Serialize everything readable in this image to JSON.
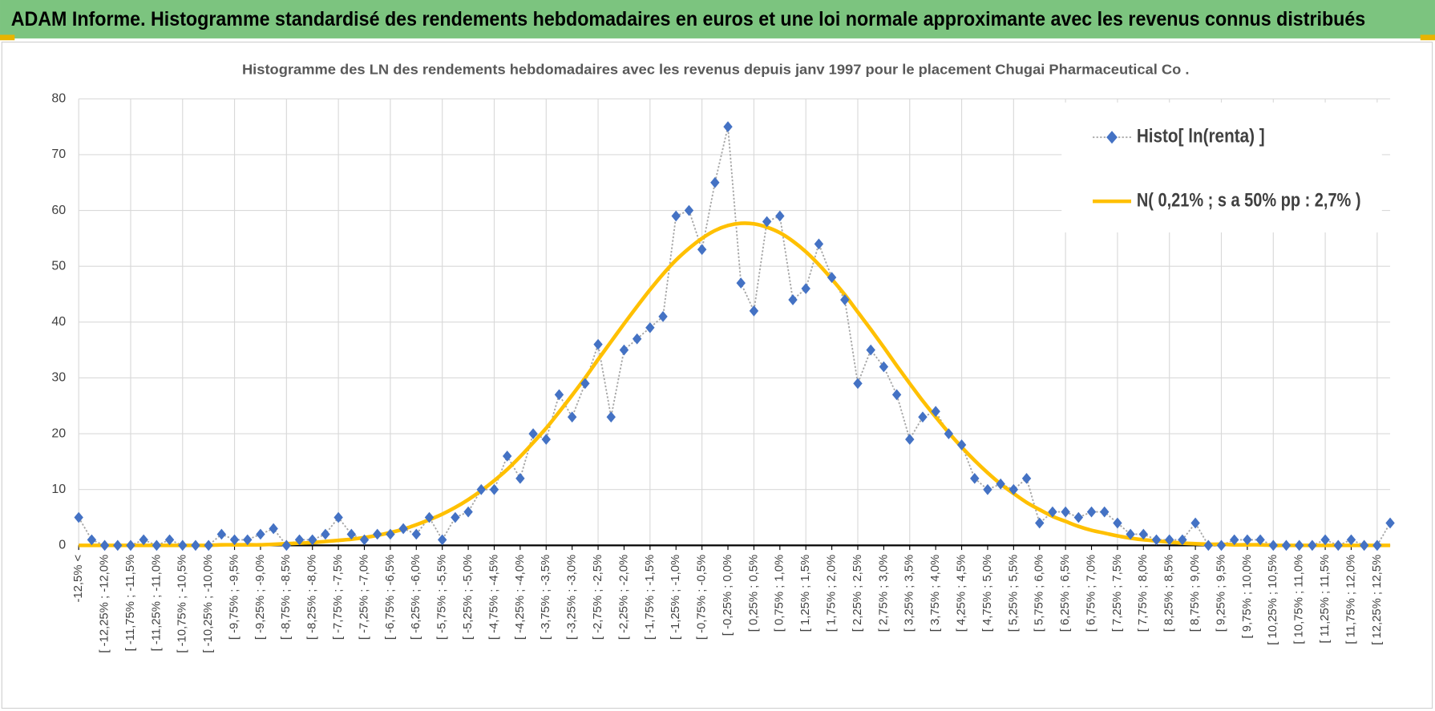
{
  "chart_data": {
    "type": "line",
    "title": "ADAM Informe. Histogramme standardisé des rendements hebdomadaires en euros et une loi normale approximante avec les revenus connus distribués",
    "subtitle": "Histogramme  des LN des rendements hebdomadaires avec les revenus depuis janv 1997 pour le placement Chugai Pharmaceutical Co .",
    "categories": [
      "-12,5% <",
      null,
      "[ -12,25% ; -12,0%",
      null,
      "[ -11,75% ; -11,5%",
      null,
      "[ -11,25% ; -11,0%",
      null,
      "[ -10,75% ; -10,5%",
      null,
      "[ -10,25% ; -10,0%",
      null,
      "[ -9,75% ; -9,5%",
      null,
      "[ -9,25% ; -9,0%",
      null,
      "[ -8,75% ; -8,5%",
      null,
      "[ -8,25% ; -8,0%",
      null,
      "[ -7,75% ; -7,5%",
      null,
      "[ -7,25% ; -7,0%",
      null,
      "[ -6,75% ; -6,5%",
      null,
      "[ -6,25% ; -6,0%",
      null,
      "[ -5,75% ; -5,5%",
      null,
      "[ -5,25% ; -5,0%",
      null,
      "[ -4,75% ; -4,5%",
      null,
      "[ -4,25% ; -4,0%",
      null,
      "[ -3,75% ; -3,5%",
      null,
      "[ -3,25% ; -3,0%",
      null,
      "[ -2,75% ; -2,5%",
      null,
      "[ -2,25% ; -2,0%",
      null,
      "[ -1,75% ; -1,5%",
      null,
      "[ -1,25% ; -1,0%",
      null,
      "[ -0,75% ; -0,5%",
      null,
      "[ -0,25% ; 0,0%",
      null,
      "[ 0,25% ; 0,5%",
      null,
      "[ 0,75% ; 1,0%",
      null,
      "[ 1,25% ; 1,5%",
      null,
      "[ 1,75% ; 2,0%",
      null,
      "[ 2,25% ; 2,5%",
      null,
      "[ 2,75% ; 3,0%",
      null,
      "[ 3,25% ; 3,5%",
      null,
      "[ 3,75% ; 4,0%",
      null,
      "[ 4,25% ; 4,5%",
      null,
      "[ 4,75% ; 5,0%",
      null,
      "[ 5,25% ; 5,5%",
      null,
      "[ 5,75% ; 6,0%",
      null,
      "[ 6,25% ; 6,5%",
      null,
      "[ 6,75% ; 7,0%",
      null,
      "[ 7,25% ; 7,5%",
      null,
      "[ 7,75% ; 8,0%",
      null,
      "[ 8,25% ; 8,5%",
      null,
      "[ 8,75% ; 9,0%",
      null,
      "[ 9,25% ; 9,5%",
      null,
      "[ 9,75% ; 10,0%",
      null,
      "[ 10,25% ; 10,5%",
      null,
      "[ 10,75% ; 11,0%",
      null,
      "[ 11,25% ; 11,5%",
      null,
      "[ 11,75% ; 12,0%",
      null,
      "[ 12,25% ; 12,5%",
      null
    ],
    "series": [
      {
        "name": "Histo[ ln(renta) ]",
        "color": "#4472c4",
        "line_color": "#a5a5a5",
        "values": [
          5,
          1,
          0,
          0,
          0,
          1,
          0,
          1,
          0,
          0,
          0,
          2,
          1,
          1,
          2,
          3,
          0,
          1,
          1,
          2,
          5,
          2,
          1,
          2,
          2,
          3,
          2,
          5,
          1,
          5,
          6,
          10,
          10,
          16,
          12,
          20,
          19,
          27,
          23,
          29,
          36,
          23,
          35,
          37,
          39,
          41,
          59,
          60,
          53,
          65,
          75,
          47,
          42,
          58,
          59,
          44,
          46,
          54,
          48,
          44,
          29,
          35,
          32,
          27,
          19,
          23,
          24,
          20,
          18,
          12,
          10,
          11,
          10,
          12,
          4,
          6,
          6,
          5,
          6,
          6,
          4,
          2,
          2,
          1,
          1,
          1,
          4,
          0,
          0,
          1,
          1,
          1,
          0,
          0,
          0,
          0,
          1,
          0,
          1,
          0,
          0,
          4
        ]
      },
      {
        "name": "N( 0,21% ; s a 50% pp : 2,7% )",
        "color": "#ffc000",
        "values": [
          0,
          0,
          0,
          0,
          0,
          0,
          0,
          0,
          0,
          0,
          0,
          0.1,
          0.1,
          0.1,
          0.1,
          0.2,
          0.3,
          0.4,
          0.5,
          0.7,
          0.9,
          1.1,
          1.4,
          1.8,
          2.3,
          2.9,
          3.7,
          4.6,
          5.6,
          6.8,
          8.2,
          9.8,
          11.6,
          13.6,
          15.9,
          18.4,
          21.0,
          23.9,
          26.9,
          30.0,
          33.3,
          36.5,
          39.7,
          42.8,
          45.8,
          48.6,
          51.1,
          53.2,
          55.0,
          56.4,
          57.3,
          57.7,
          57.6,
          57.0,
          56.0,
          54.5,
          52.6,
          50.3,
          47.7,
          44.9,
          41.8,
          38.7,
          35.5,
          32.2,
          29.0,
          25.9,
          23.0,
          20.2,
          17.6,
          15.2,
          13.0,
          11.0,
          9.3,
          7.7,
          6.4,
          5.2,
          4.3,
          3.4,
          2.7,
          2.2,
          1.7,
          1.3,
          1.0,
          0.8,
          0.6,
          0.4,
          0.3,
          0.2,
          0.2,
          0.1,
          0.1,
          0.1,
          0,
          0,
          0,
          0,
          0,
          0,
          0,
          0,
          0,
          0
        ]
      }
    ],
    "ylim": [
      0,
      80
    ],
    "yticks": [
      0,
      10,
      20,
      30,
      40,
      50,
      60,
      70,
      80
    ],
    "grid": true,
    "legend": "top-right"
  }
}
